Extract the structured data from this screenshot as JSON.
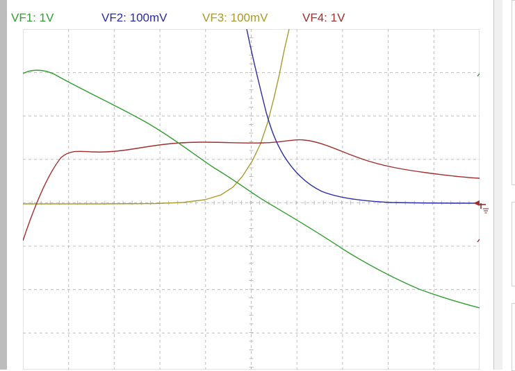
{
  "channels": [
    {
      "label": "VF1: 1V",
      "color": "#2e9e2e"
    },
    {
      "label": "VF2: 100mV",
      "color": "#2b2ba8"
    },
    {
      "label": "VF3: 100mV",
      "color": "#a89a2c"
    },
    {
      "label": "VF4: 1V",
      "color": "#a42c2c"
    }
  ],
  "grid": {
    "color": "#bdbdbd",
    "vertical_divisions": 10,
    "horizontal_divisions_visible": 8
  },
  "ground_marker_icon": "ground-icon",
  "trigger_marker_color": "#a42c2c"
}
